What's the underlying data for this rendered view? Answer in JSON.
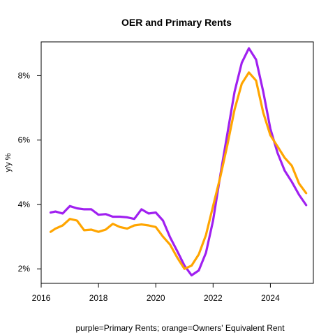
{
  "chart_data": {
    "type": "line",
    "title": "OER and Primary Rents",
    "xlabel": "purple=Primary Rents; orange=Owners' Equivalent Rent",
    "ylabel": "y/y %",
    "xlim": [
      2016.0,
      2025.5
    ],
    "ylim": [
      1.55,
      9.05
    ],
    "grid": false,
    "legend": "none",
    "x_ticks": [
      {
        "value": 2016,
        "label": "2016"
      },
      {
        "value": 2018,
        "label": "2018"
      },
      {
        "value": 2020,
        "label": "2020"
      },
      {
        "value": 2022,
        "label": "2022"
      },
      {
        "value": 2024,
        "label": "2024"
      }
    ],
    "y_ticks": [
      {
        "value": 2,
        "label": "2%"
      },
      {
        "value": 4,
        "label": "4%"
      },
      {
        "value": 6,
        "label": "6%"
      },
      {
        "value": 8,
        "label": "8%"
      }
    ],
    "series": [
      {
        "color": "#a020f0",
        "x": [
          2016.33,
          2016.5,
          2016.75,
          2017.0,
          2017.25,
          2017.5,
          2017.75,
          2018.0,
          2018.25,
          2018.5,
          2018.75,
          2019.0,
          2019.25,
          2019.5,
          2019.75,
          2020.0,
          2020.25,
          2020.5,
          2020.75,
          2021.0,
          2021.25,
          2021.5,
          2021.75,
          2022.0,
          2022.25,
          2022.5,
          2022.75,
          2023.0,
          2023.25,
          2023.5,
          2023.75,
          2024.0,
          2024.25,
          2024.5,
          2024.75,
          2025.0,
          2025.25
        ],
        "values": [
          3.75,
          3.78,
          3.72,
          3.95,
          3.88,
          3.85,
          3.85,
          3.68,
          3.7,
          3.62,
          3.62,
          3.6,
          3.55,
          3.85,
          3.72,
          3.75,
          3.5,
          2.98,
          2.55,
          2.1,
          1.8,
          1.95,
          2.5,
          3.5,
          4.9,
          6.2,
          7.5,
          8.4,
          8.85,
          8.5,
          7.5,
          6.35,
          5.6,
          5.05,
          4.7,
          4.3,
          3.98
        ]
      },
      {
        "color": "#ffa500",
        "x": [
          2016.33,
          2016.5,
          2016.75,
          2017.0,
          2017.25,
          2017.5,
          2017.75,
          2018.0,
          2018.25,
          2018.5,
          2018.75,
          2019.0,
          2019.25,
          2019.5,
          2019.75,
          2020.0,
          2020.25,
          2020.5,
          2020.75,
          2021.0,
          2021.25,
          2021.5,
          2021.75,
          2022.0,
          2022.25,
          2022.5,
          2022.75,
          2023.0,
          2023.25,
          2023.5,
          2023.75,
          2024.0,
          2024.25,
          2024.5,
          2024.75,
          2025.0,
          2025.25
        ],
        "values": [
          3.15,
          3.25,
          3.35,
          3.55,
          3.5,
          3.2,
          3.22,
          3.15,
          3.22,
          3.4,
          3.3,
          3.25,
          3.35,
          3.38,
          3.35,
          3.3,
          3.0,
          2.75,
          2.35,
          2.0,
          2.1,
          2.45,
          3.05,
          3.95,
          4.85,
          5.85,
          6.95,
          7.75,
          8.1,
          7.85,
          6.85,
          6.15,
          5.8,
          5.45,
          5.2,
          4.65,
          4.35
        ]
      }
    ]
  }
}
